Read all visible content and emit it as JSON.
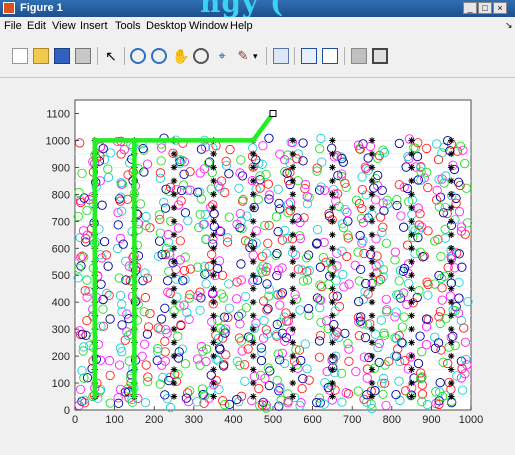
{
  "window": {
    "title": "Figure 1",
    "banner_text": "ngy (",
    "buttons": [
      "_",
      "□",
      "×"
    ]
  },
  "menu": [
    "File",
    "Edit",
    "View",
    "Insert",
    "Tools",
    "Desktop",
    "Window",
    "Help"
  ],
  "toolbar": {
    "icons": [
      "new-file-icon",
      "open-folder-icon",
      "save-icon",
      "print-icon",
      "pointer-icon",
      "zoom-in-icon",
      "zoom-out-icon",
      "pan-icon",
      "rotate-3d-icon",
      "data-cursor-icon",
      "brush-icon",
      "brush-dropdown-icon",
      "link-plot-icon",
      "colorbar-icon",
      "legend-icon",
      "hide-plot-tools-icon",
      "show-plot-tools-icon"
    ]
  },
  "chart_data": {
    "type": "scatter",
    "xlim": [
      0,
      1000
    ],
    "ylim": [
      0,
      1150
    ],
    "xticks": [
      0,
      100,
      200,
      300,
      400,
      500,
      600,
      700,
      800,
      900,
      1000
    ],
    "yticks": [
      0,
      100,
      200,
      300,
      400,
      500,
      600,
      700,
      800,
      900,
      1000,
      1100
    ],
    "grid": false,
    "circle_colors": [
      "#ff2020",
      "#0000a0",
      "#20e020",
      "#ff20ff",
      "#20d0d0"
    ],
    "column_centers_x": [
      50,
      150,
      250,
      350,
      450,
      550,
      650,
      750,
      850,
      950
    ],
    "star_rows_y": [
      50,
      100,
      150,
      200,
      250,
      300,
      350,
      400,
      450,
      500,
      550,
      600,
      650,
      700,
      750,
      800,
      850,
      900,
      950,
      1000
    ],
    "path": {
      "color": "#22ee22",
      "x": [
        50,
        50,
        50,
        150,
        150,
        150,
        450,
        500
      ],
      "y": [
        50,
        1000,
        1000,
        1000,
        50,
        1000,
        1000,
        1100
      ]
    },
    "end_marker": {
      "x": 500,
      "y": 1100
    }
  }
}
